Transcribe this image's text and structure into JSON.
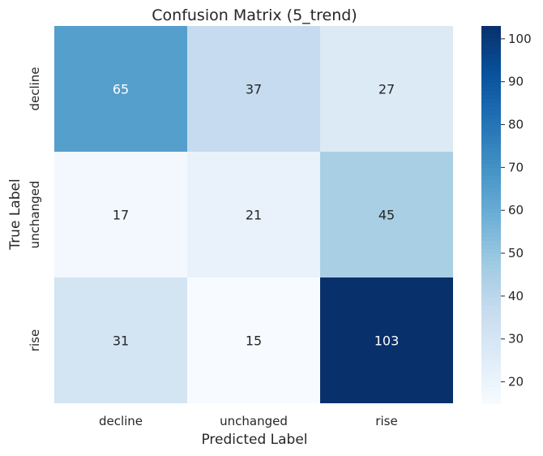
{
  "chart_data": {
    "type": "heatmap",
    "title": "Confusion Matrix (5_trend)",
    "xlabel": "Predicted Label",
    "ylabel": "True Label",
    "x_categories": [
      "decline",
      "unchanged",
      "rise"
    ],
    "y_categories": [
      "decline",
      "unchanged",
      "rise"
    ],
    "values": [
      [
        65,
        37,
        27
      ],
      [
        17,
        21,
        45
      ],
      [
        31,
        15,
        103
      ]
    ],
    "colormap": "Blues",
    "colorbar": {
      "min": 15,
      "max": 103,
      "ticks": [
        20,
        30,
        40,
        50,
        60,
        70,
        80,
        90,
        100
      ]
    }
  }
}
